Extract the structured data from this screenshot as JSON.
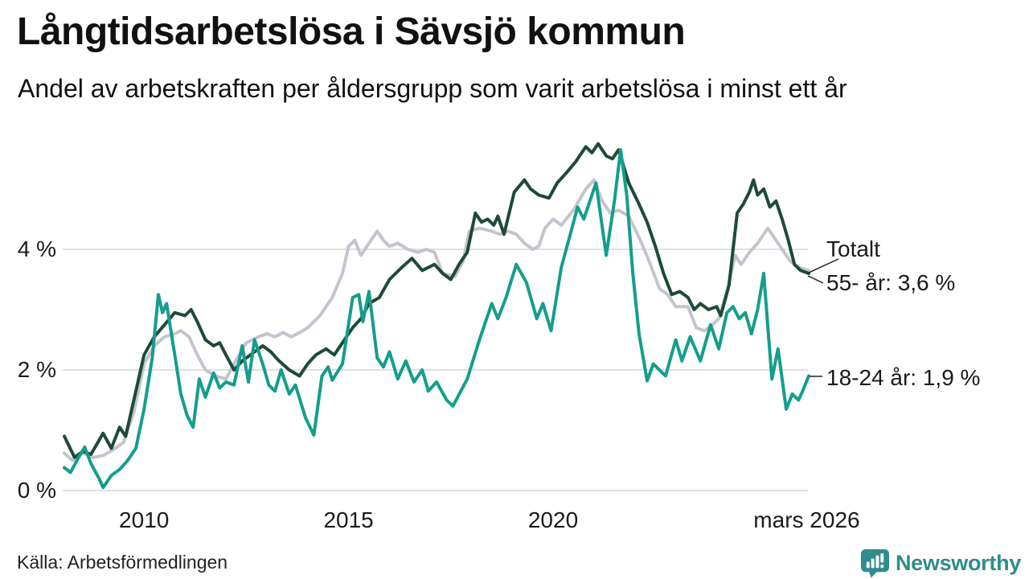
{
  "header": {
    "title": "Långtidsarbetslösa i Sävsjö kommun",
    "subtitle": "Andel av arbetskraften per åldersgrupp som varit arbetslösa i minst ett år"
  },
  "colors": {
    "dark_green": "#1d4a39",
    "teal": "#149e8b",
    "gray": "#c5c4ce",
    "grid": "#e1e1e4",
    "pointer": "#222222",
    "brand_teal": "#2f8d8a",
    "text": "#1a1a1a"
  },
  "chart_data": {
    "type": "line",
    "title": "Långtidsarbetslösa i Sävsjö kommun",
    "subtitle": "Andel av arbetskraften per åldersgrupp som varit arbetslösa i minst ett år",
    "y_unit": "%",
    "grid": true,
    "legend_position": "end-of-line annotations (right)",
    "x_axis": {
      "range": [
        2008.05,
        2026.25
      ],
      "ticks": [
        {
          "label": "2010",
          "year": 2010
        },
        {
          "label": "2015",
          "year": 2015
        },
        {
          "label": "2020",
          "year": 2020
        },
        {
          "label": "mars 2026",
          "year": 2026.2
        }
      ]
    },
    "y_axis": {
      "range": [
        0,
        5.9
      ],
      "ticks": [
        {
          "label": "0 %",
          "value": 0
        },
        {
          "label": "2 %",
          "value": 2
        },
        {
          "label": "4 %",
          "value": 4
        }
      ]
    },
    "annotations": [
      {
        "label": "Totalt",
        "series": "Totalt"
      },
      {
        "label": "55- år: 3,6 %",
        "series": "55- år",
        "value": 3.6
      },
      {
        "label": "18-24 år: 1,9 %",
        "series": "18-24 år",
        "value": 1.9
      }
    ],
    "series": [
      {
        "name": "55- år",
        "color": "#c5c4ce",
        "latest_value": 3.6,
        "points": [
          [
            2008.05,
            0.62
          ],
          [
            2008.25,
            0.5
          ],
          [
            2008.5,
            0.62
          ],
          [
            2008.75,
            0.55
          ],
          [
            2009.0,
            0.58
          ],
          [
            2009.25,
            0.68
          ],
          [
            2009.5,
            0.8
          ],
          [
            2009.75,
            1.3
          ],
          [
            2010.0,
            2.1
          ],
          [
            2010.25,
            2.4
          ],
          [
            2010.5,
            2.55
          ],
          [
            2010.75,
            2.6
          ],
          [
            2010.9,
            2.65
          ],
          [
            2011.1,
            2.55
          ],
          [
            2011.3,
            2.25
          ],
          [
            2011.5,
            2.0
          ],
          [
            2011.75,
            1.9
          ],
          [
            2012.0,
            1.85
          ],
          [
            2012.2,
            2.1
          ],
          [
            2012.5,
            2.45
          ],
          [
            2012.8,
            2.55
          ],
          [
            2013.0,
            2.6
          ],
          [
            2013.2,
            2.55
          ],
          [
            2013.4,
            2.62
          ],
          [
            2013.6,
            2.55
          ],
          [
            2013.8,
            2.62
          ],
          [
            2014.0,
            2.7
          ],
          [
            2014.3,
            2.9
          ],
          [
            2014.6,
            3.2
          ],
          [
            2014.85,
            3.6
          ],
          [
            2015.0,
            4.05
          ],
          [
            2015.15,
            4.15
          ],
          [
            2015.3,
            3.9
          ],
          [
            2015.5,
            4.1
          ],
          [
            2015.7,
            4.3
          ],
          [
            2015.85,
            4.15
          ],
          [
            2016.0,
            4.05
          ],
          [
            2016.2,
            4.1
          ],
          [
            2016.45,
            4.0
          ],
          [
            2016.7,
            3.95
          ],
          [
            2016.9,
            4.0
          ],
          [
            2017.1,
            3.95
          ],
          [
            2017.3,
            3.6
          ],
          [
            2017.6,
            3.55
          ],
          [
            2017.8,
            3.8
          ],
          [
            2017.95,
            4.3
          ],
          [
            2018.2,
            4.35
          ],
          [
            2018.5,
            4.3
          ],
          [
            2018.7,
            4.25
          ],
          [
            2018.9,
            4.3
          ],
          [
            2019.1,
            4.25
          ],
          [
            2019.3,
            4.1
          ],
          [
            2019.5,
            4.0
          ],
          [
            2019.65,
            4.05
          ],
          [
            2019.8,
            4.35
          ],
          [
            2020.0,
            4.5
          ],
          [
            2020.2,
            4.4
          ],
          [
            2020.5,
            4.65
          ],
          [
            2020.8,
            5.0
          ],
          [
            2021.0,
            5.15
          ],
          [
            2021.2,
            4.8
          ],
          [
            2021.4,
            4.6
          ],
          [
            2021.6,
            4.65
          ],
          [
            2021.85,
            4.55
          ],
          [
            2022.1,
            4.2
          ],
          [
            2022.35,
            3.8
          ],
          [
            2022.6,
            3.35
          ],
          [
            2022.8,
            3.25
          ],
          [
            2023.0,
            3.05
          ],
          [
            2023.3,
            3.05
          ],
          [
            2023.5,
            2.7
          ],
          [
            2023.7,
            2.65
          ],
          [
            2023.9,
            2.75
          ],
          [
            2024.05,
            2.85
          ],
          [
            2024.25,
            3.3
          ],
          [
            2024.45,
            3.9
          ],
          [
            2024.6,
            3.75
          ],
          [
            2024.8,
            3.95
          ],
          [
            2025.0,
            4.1
          ],
          [
            2025.25,
            4.35
          ],
          [
            2025.4,
            4.2
          ],
          [
            2025.6,
            4.0
          ],
          [
            2025.8,
            3.8
          ],
          [
            2026.0,
            3.7
          ],
          [
            2026.25,
            3.65
          ]
        ]
      },
      {
        "name": "Totalt",
        "color": "#1d4a39",
        "latest_value": 3.6,
        "points": [
          [
            2008.05,
            0.9
          ],
          [
            2008.3,
            0.55
          ],
          [
            2008.5,
            0.65
          ],
          [
            2008.7,
            0.6
          ],
          [
            2009.0,
            0.95
          ],
          [
            2009.2,
            0.7
          ],
          [
            2009.4,
            1.05
          ],
          [
            2009.55,
            0.9
          ],
          [
            2009.75,
            1.5
          ],
          [
            2010.0,
            2.25
          ],
          [
            2010.25,
            2.55
          ],
          [
            2010.5,
            2.75
          ],
          [
            2010.75,
            2.95
          ],
          [
            2011.0,
            2.9
          ],
          [
            2011.15,
            3.0
          ],
          [
            2011.3,
            2.8
          ],
          [
            2011.5,
            2.5
          ],
          [
            2011.7,
            2.4
          ],
          [
            2011.85,
            2.45
          ],
          [
            2012.0,
            2.25
          ],
          [
            2012.2,
            2.0
          ],
          [
            2012.4,
            2.15
          ],
          [
            2012.6,
            2.25
          ],
          [
            2012.9,
            2.4
          ],
          [
            2013.1,
            2.3
          ],
          [
            2013.3,
            2.15
          ],
          [
            2013.55,
            2.0
          ],
          [
            2013.8,
            1.9
          ],
          [
            2014.0,
            2.1
          ],
          [
            2014.2,
            2.25
          ],
          [
            2014.45,
            2.35
          ],
          [
            2014.65,
            2.25
          ],
          [
            2014.9,
            2.5
          ],
          [
            2015.1,
            2.7
          ],
          [
            2015.3,
            2.85
          ],
          [
            2015.5,
            3.1
          ],
          [
            2015.75,
            3.2
          ],
          [
            2016.0,
            3.5
          ],
          [
            2016.3,
            3.7
          ],
          [
            2016.55,
            3.85
          ],
          [
            2016.8,
            3.65
          ],
          [
            2017.1,
            3.75
          ],
          [
            2017.3,
            3.6
          ],
          [
            2017.5,
            3.5
          ],
          [
            2017.7,
            3.75
          ],
          [
            2017.9,
            3.95
          ],
          [
            2018.1,
            4.6
          ],
          [
            2018.25,
            4.45
          ],
          [
            2018.4,
            4.5
          ],
          [
            2018.55,
            4.4
          ],
          [
            2018.65,
            4.55
          ],
          [
            2018.8,
            4.25
          ],
          [
            2019.05,
            4.95
          ],
          [
            2019.3,
            5.15
          ],
          [
            2019.45,
            5.0
          ],
          [
            2019.65,
            4.9
          ],
          [
            2019.9,
            4.85
          ],
          [
            2020.1,
            5.1
          ],
          [
            2020.3,
            5.25
          ],
          [
            2020.55,
            5.45
          ],
          [
            2020.8,
            5.7
          ],
          [
            2020.95,
            5.6
          ],
          [
            2021.1,
            5.75
          ],
          [
            2021.3,
            5.55
          ],
          [
            2021.45,
            5.5
          ],
          [
            2021.6,
            5.65
          ],
          [
            2021.85,
            5.1
          ],
          [
            2022.1,
            4.75
          ],
          [
            2022.3,
            4.45
          ],
          [
            2022.5,
            4.05
          ],
          [
            2022.7,
            3.6
          ],
          [
            2022.9,
            3.25
          ],
          [
            2023.1,
            3.3
          ],
          [
            2023.3,
            3.2
          ],
          [
            2023.45,
            3.0
          ],
          [
            2023.6,
            3.1
          ],
          [
            2023.8,
            3.0
          ],
          [
            2024.0,
            3.05
          ],
          [
            2024.1,
            2.9
          ],
          [
            2024.3,
            3.4
          ],
          [
            2024.5,
            4.6
          ],
          [
            2024.65,
            4.75
          ],
          [
            2024.8,
            4.95
          ],
          [
            2024.9,
            5.15
          ],
          [
            2025.0,
            4.9
          ],
          [
            2025.15,
            5.0
          ],
          [
            2025.3,
            4.7
          ],
          [
            2025.45,
            4.8
          ],
          [
            2025.6,
            4.5
          ],
          [
            2025.75,
            4.15
          ],
          [
            2025.9,
            3.75
          ],
          [
            2026.05,
            3.65
          ],
          [
            2026.25,
            3.6
          ]
        ]
      },
      {
        "name": "18-24 år",
        "color": "#149e8b",
        "latest_value": 1.9,
        "points": [
          [
            2008.05,
            0.38
          ],
          [
            2008.2,
            0.3
          ],
          [
            2008.4,
            0.55
          ],
          [
            2008.55,
            0.72
          ],
          [
            2008.7,
            0.45
          ],
          [
            2008.9,
            0.2
          ],
          [
            2009.0,
            0.05
          ],
          [
            2009.2,
            0.25
          ],
          [
            2009.4,
            0.35
          ],
          [
            2009.6,
            0.5
          ],
          [
            2009.8,
            0.7
          ],
          [
            2010.0,
            1.35
          ],
          [
            2010.2,
            2.2
          ],
          [
            2010.35,
            3.25
          ],
          [
            2010.45,
            2.95
          ],
          [
            2010.55,
            3.1
          ],
          [
            2010.75,
            2.25
          ],
          [
            2010.9,
            1.6
          ],
          [
            2011.05,
            1.25
          ],
          [
            2011.2,
            1.05
          ],
          [
            2011.35,
            1.85
          ],
          [
            2011.5,
            1.55
          ],
          [
            2011.7,
            1.95
          ],
          [
            2011.85,
            1.7
          ],
          [
            2012.0,
            1.8
          ],
          [
            2012.2,
            1.75
          ],
          [
            2012.4,
            2.4
          ],
          [
            2012.55,
            1.8
          ],
          [
            2012.7,
            2.5
          ],
          [
            2012.9,
            2.1
          ],
          [
            2013.05,
            1.75
          ],
          [
            2013.2,
            1.65
          ],
          [
            2013.35,
            2.0
          ],
          [
            2013.55,
            1.6
          ],
          [
            2013.7,
            1.75
          ],
          [
            2013.95,
            1.2
          ],
          [
            2014.15,
            0.92
          ],
          [
            2014.35,
            1.9
          ],
          [
            2014.5,
            2.05
          ],
          [
            2014.6,
            1.83
          ],
          [
            2014.85,
            2.1
          ],
          [
            2015.1,
            3.2
          ],
          [
            2015.25,
            3.25
          ],
          [
            2015.35,
            2.8
          ],
          [
            2015.5,
            3.3
          ],
          [
            2015.7,
            2.2
          ],
          [
            2015.85,
            2.05
          ],
          [
            2016.0,
            2.3
          ],
          [
            2016.2,
            1.85
          ],
          [
            2016.4,
            2.15
          ],
          [
            2016.6,
            1.8
          ],
          [
            2016.8,
            2.0
          ],
          [
            2016.95,
            1.65
          ],
          [
            2017.15,
            1.8
          ],
          [
            2017.4,
            1.5
          ],
          [
            2017.55,
            1.4
          ],
          [
            2017.9,
            1.85
          ],
          [
            2018.2,
            2.5
          ],
          [
            2018.5,
            3.1
          ],
          [
            2018.65,
            2.85
          ],
          [
            2018.85,
            3.2
          ],
          [
            2019.1,
            3.75
          ],
          [
            2019.35,
            3.45
          ],
          [
            2019.6,
            2.85
          ],
          [
            2019.75,
            3.1
          ],
          [
            2019.95,
            2.65
          ],
          [
            2020.2,
            3.7
          ],
          [
            2020.4,
            4.2
          ],
          [
            2020.6,
            4.7
          ],
          [
            2020.75,
            4.5
          ],
          [
            2020.9,
            4.8
          ],
          [
            2021.05,
            5.1
          ],
          [
            2021.3,
            3.9
          ],
          [
            2021.5,
            4.8
          ],
          [
            2021.65,
            5.65
          ],
          [
            2021.8,
            4.9
          ],
          [
            2021.95,
            3.6
          ],
          [
            2022.1,
            2.6
          ],
          [
            2022.3,
            1.82
          ],
          [
            2022.45,
            2.1
          ],
          [
            2022.6,
            2.0
          ],
          [
            2022.75,
            1.9
          ],
          [
            2023.0,
            2.5
          ],
          [
            2023.15,
            2.15
          ],
          [
            2023.35,
            2.55
          ],
          [
            2023.6,
            2.15
          ],
          [
            2023.85,
            2.75
          ],
          [
            2024.05,
            2.35
          ],
          [
            2024.25,
            2.95
          ],
          [
            2024.4,
            3.05
          ],
          [
            2024.55,
            2.85
          ],
          [
            2024.7,
            2.95
          ],
          [
            2024.85,
            2.6
          ],
          [
            2025.0,
            3.0
          ],
          [
            2025.15,
            3.6
          ],
          [
            2025.35,
            1.85
          ],
          [
            2025.5,
            2.35
          ],
          [
            2025.7,
            1.35
          ],
          [
            2025.85,
            1.6
          ],
          [
            2026.0,
            1.5
          ],
          [
            2026.1,
            1.65
          ],
          [
            2026.25,
            1.9
          ]
        ]
      }
    ]
  },
  "footer": {
    "source": "Källa: Arbetsförmedlingen",
    "brand": "Newsworthy",
    "brand_icon": "newsworthy-speech-bubble-bar-chart-icon"
  }
}
